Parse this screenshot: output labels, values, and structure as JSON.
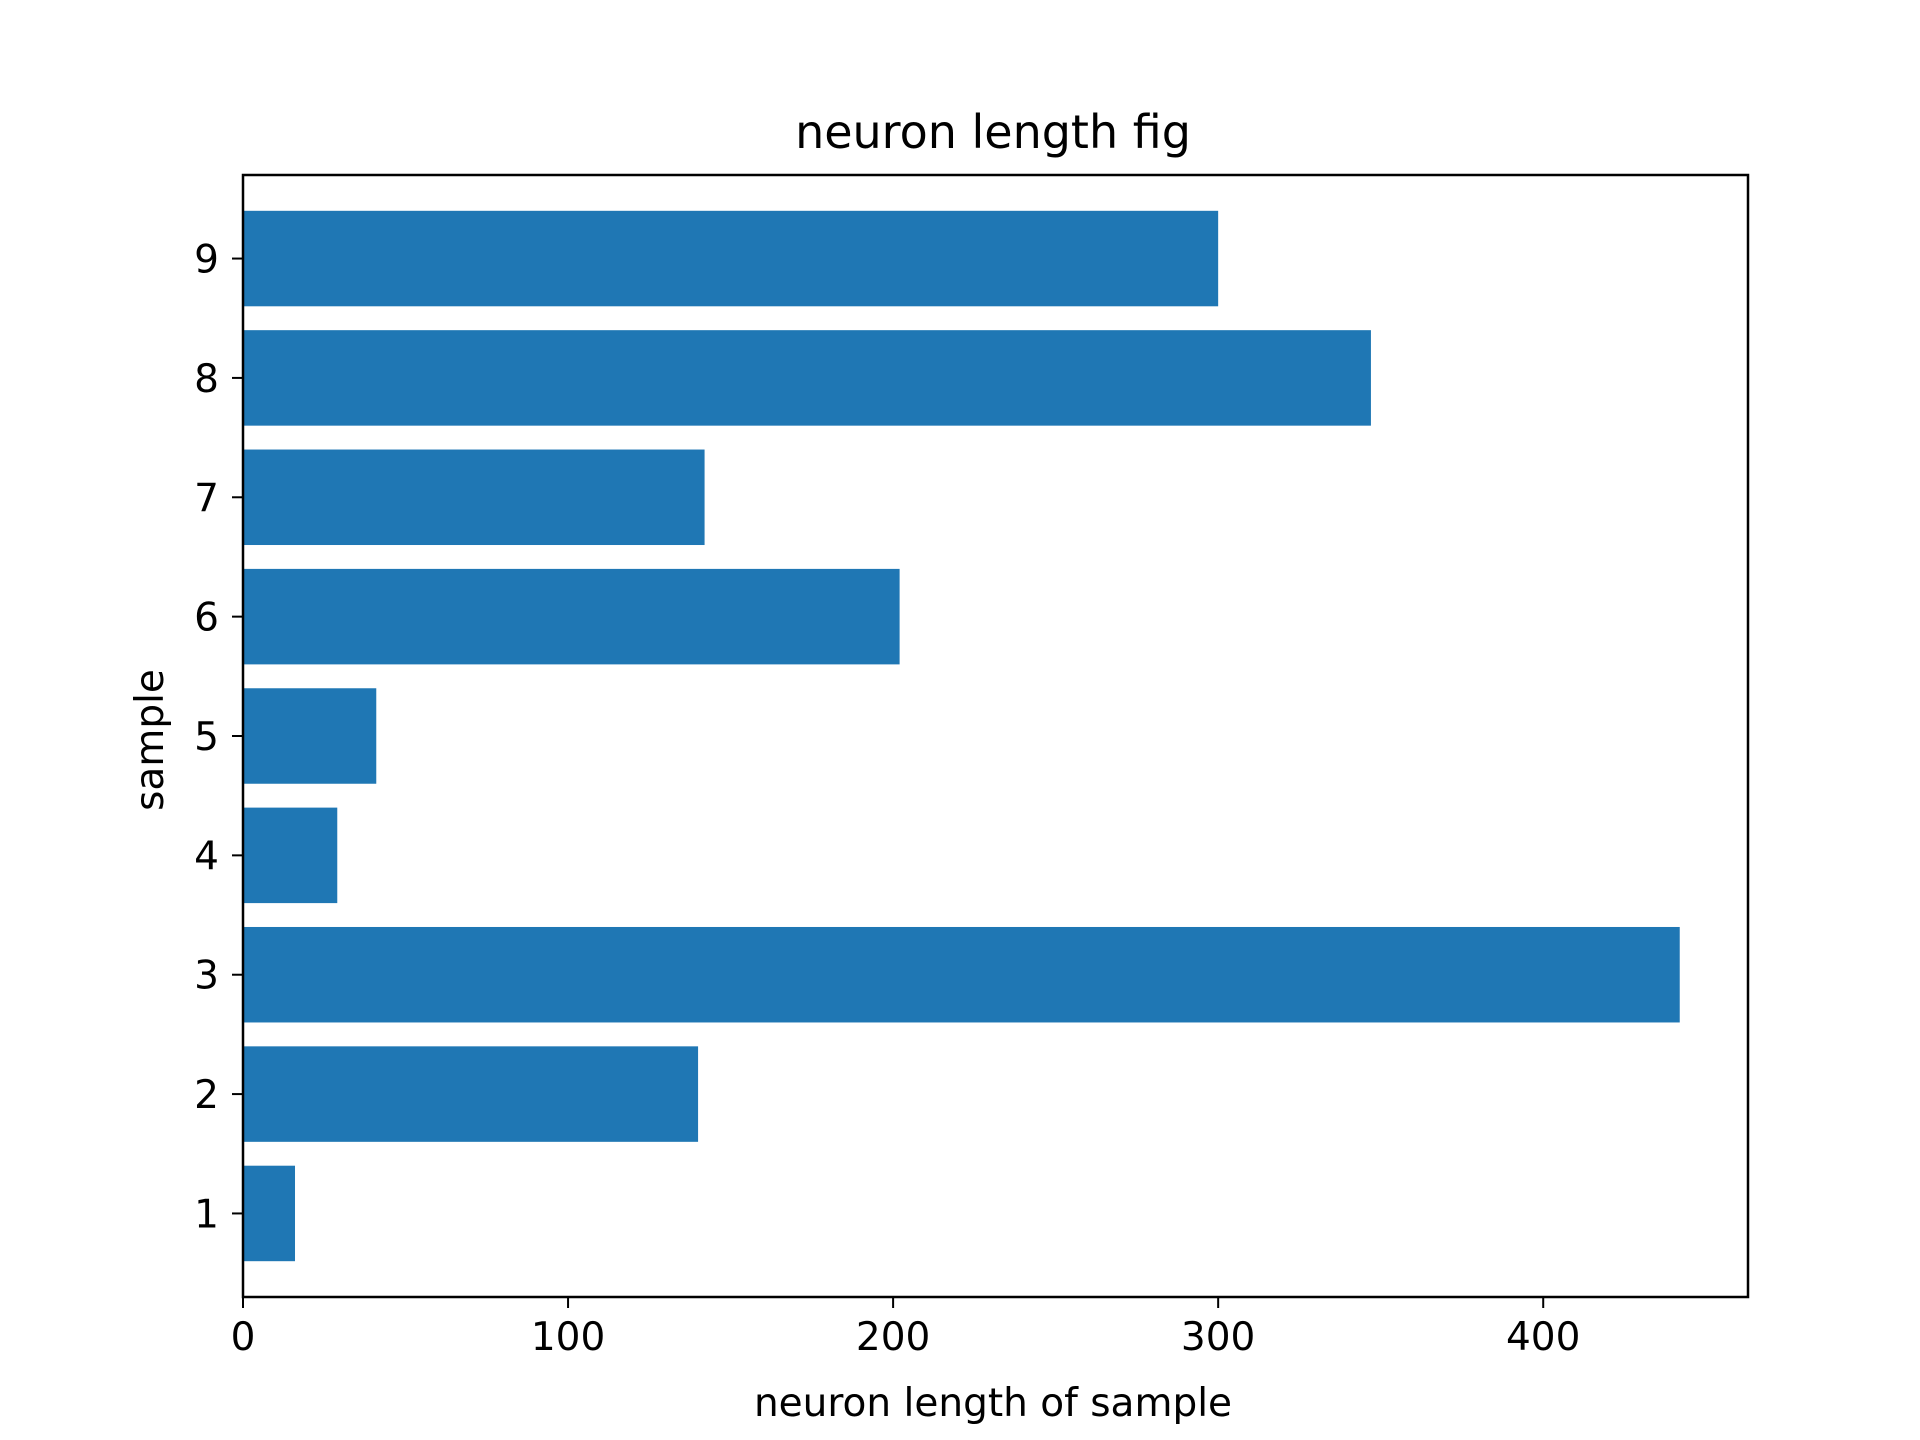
{
  "chart_data": {
    "type": "bar",
    "orientation": "horizontal",
    "title": "neuron length fig",
    "xlabel": "neuron length of sample",
    "ylabel": "sample",
    "categories": [
      "1",
      "2",
      "3",
      "4",
      "5",
      "6",
      "7",
      "8",
      "9"
    ],
    "values": [
      16,
      140,
      442,
      29,
      41,
      202,
      142,
      347,
      300
    ],
    "xlim": [
      0,
      463
    ],
    "ylim": [
      0.3,
      9.7
    ],
    "xticks": [
      0,
      100,
      200,
      300,
      400
    ],
    "yticks": [
      "1",
      "2",
      "3",
      "4",
      "5",
      "6",
      "7",
      "8",
      "9"
    ],
    "bar_color": "#1f77b4",
    "grid": false,
    "legend": "none"
  }
}
